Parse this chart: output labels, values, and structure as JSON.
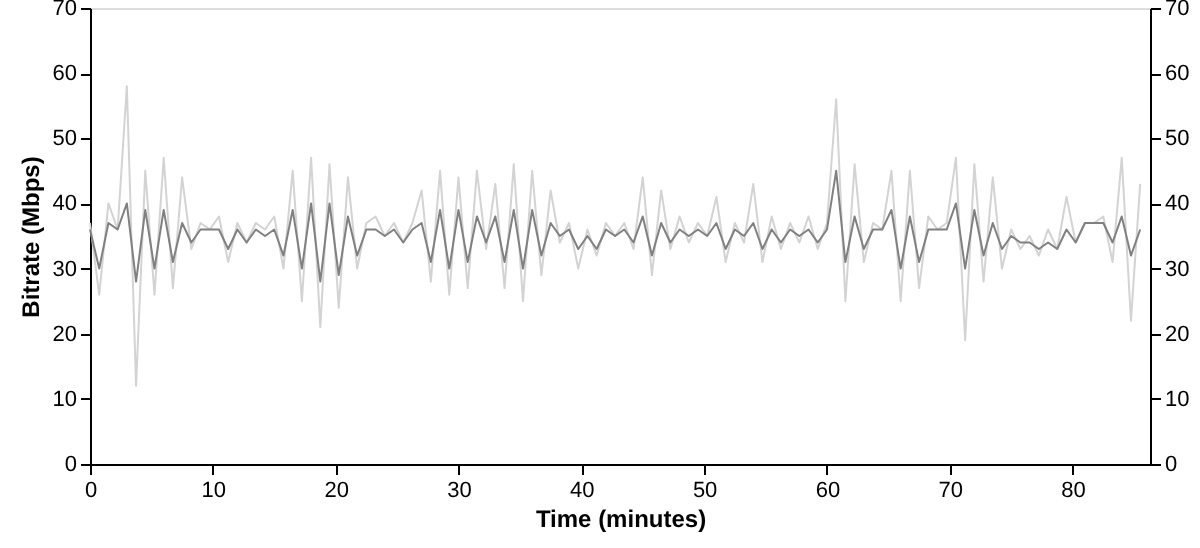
{
  "chart_data": {
    "type": "line",
    "xlabel": "Time (minutes)",
    "ylabel": "Bitrate (Mbps)",
    "x": [
      0,
      0.75,
      1.5,
      2.25,
      3,
      3.75,
      4.5,
      5.25,
      6,
      6.75,
      7.5,
      8.25,
      9,
      9.75,
      10.5,
      11.25,
      12,
      12.75,
      13.5,
      14.25,
      15,
      15.75,
      16.5,
      17.25,
      18,
      18.75,
      19.5,
      20.25,
      21,
      21.75,
      22.5,
      23.25,
      24,
      24.75,
      25.5,
      26.25,
      27,
      27.75,
      28.5,
      29.25,
      30,
      30.75,
      31.5,
      32.25,
      33,
      33.75,
      34.5,
      35.25,
      36,
      36.75,
      37.5,
      38.25,
      39,
      39.75,
      40.5,
      41.25,
      42,
      42.75,
      43.5,
      44.25,
      45,
      45.75,
      46.5,
      47.25,
      48,
      48.75,
      49.5,
      50.25,
      51,
      51.75,
      52.5,
      53.25,
      54,
      54.75,
      55.5,
      56.25,
      57,
      57.75,
      58.5,
      59.25,
      60,
      60.75,
      61.5,
      62.25,
      63,
      63.75,
      64.5,
      65.25,
      66,
      66.75,
      67.5,
      68.25,
      69,
      69.75,
      70.5,
      71.25,
      72,
      72.75,
      73.5,
      74.25,
      75,
      75.75,
      76.5,
      77.25,
      78,
      78.75,
      79.5,
      80.25,
      81,
      81.75,
      82.5,
      83.25,
      84,
      84.75,
      85.5
    ],
    "series": [
      {
        "color": "#d3d3d3",
        "values": [
          37,
          26,
          40,
          36,
          58,
          12,
          45,
          26,
          47,
          27,
          44,
          33,
          37,
          36,
          38,
          31,
          37,
          34,
          37,
          36,
          38,
          30,
          45,
          25,
          47,
          21,
          46,
          24,
          44,
          30,
          37,
          38,
          35,
          37,
          34,
          37,
          42,
          28,
          45,
          26,
          44,
          27,
          45,
          33,
          43,
          27,
          46,
          25,
          45,
          29,
          42,
          34,
          37,
          30,
          36,
          32,
          37,
          35,
          37,
          33,
          44,
          29,
          42,
          33,
          38,
          34,
          37,
          35,
          41,
          31,
          37,
          34,
          43,
          31,
          38,
          33,
          37,
          34,
          38,
          33,
          37,
          56,
          25,
          46,
          31,
          37,
          36,
          45,
          25,
          45,
          27,
          38,
          36,
          37,
          47,
          19,
          46,
          28,
          44,
          30,
          36,
          33,
          35,
          32,
          36,
          33,
          41,
          34,
          37,
          37,
          38,
          31,
          47,
          22,
          43
        ]
      },
      {
        "color": "#808080",
        "values": [
          36,
          30,
          37,
          36,
          40,
          28,
          39,
          30,
          39,
          31,
          37,
          34,
          36,
          36,
          36,
          33,
          36,
          34,
          36,
          35,
          36,
          32,
          39,
          30,
          40,
          28,
          40,
          29,
          38,
          32,
          36,
          36,
          35,
          36,
          34,
          36,
          37,
          31,
          39,
          30,
          39,
          31,
          38,
          34,
          38,
          31,
          39,
          30,
          39,
          32,
          37,
          35,
          36,
          33,
          35,
          33,
          36,
          35,
          36,
          34,
          38,
          32,
          37,
          34,
          36,
          35,
          36,
          35,
          37,
          33,
          36,
          35,
          37,
          33,
          36,
          34,
          36,
          35,
          36,
          34,
          36,
          45,
          31,
          38,
          33,
          36,
          36,
          39,
          30,
          38,
          31,
          36,
          36,
          36,
          40,
          30,
          39,
          32,
          37,
          33,
          35,
          34,
          34,
          33,
          34,
          33,
          36,
          34,
          37,
          37,
          37,
          34,
          38,
          32,
          36
        ]
      }
    ],
    "xlim": [
      0,
      86.3
    ],
    "xticks": [
      0,
      10,
      20,
      30,
      40,
      50,
      60,
      70,
      80
    ],
    "ylim": [
      0,
      70
    ],
    "yticks": [
      0,
      10,
      20,
      30,
      40,
      50,
      60,
      70
    ],
    "y2lim": [
      0,
      70
    ],
    "y2ticks": [
      0,
      10,
      20,
      30,
      40,
      50,
      60,
      70
    ],
    "grid": false,
    "marker": "none",
    "line_style": "solid"
  }
}
